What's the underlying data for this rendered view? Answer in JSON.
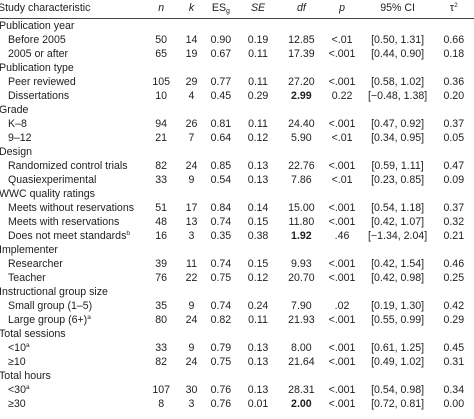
{
  "headers": {
    "study": "Study characteristic",
    "n": "n",
    "k": "k",
    "es_base": "ES",
    "es_sub": "g",
    "se": "SE",
    "df": "df",
    "p": "p",
    "ci": "95% CI",
    "tau_base": "τ",
    "tau_sup": "2"
  },
  "groups": [
    {
      "title": "Publication year",
      "rows": [
        {
          "label": "Before 2005",
          "sup": "",
          "n": "50",
          "k": "14",
          "es": "0.90",
          "se": "0.19",
          "df": "12.85",
          "df_bold": false,
          "p": "<.01",
          "ci": "[0.50, 1.31]",
          "tau": "0.66"
        },
        {
          "label": "2005 or after",
          "sup": "",
          "n": "65",
          "k": "19",
          "es": "0.67",
          "se": "0.11",
          "df": "17.39",
          "df_bold": false,
          "p": "<.001",
          "ci": "[0.44, 0.90]",
          "tau": "0.18"
        }
      ]
    },
    {
      "title": "Publication type",
      "rows": [
        {
          "label": "Peer reviewed",
          "sup": "",
          "n": "105",
          "k": "29",
          "es": "0.77",
          "se": "0.11",
          "df": "27.20",
          "df_bold": false,
          "p": "<.001",
          "ci": "[0.58, 1.02]",
          "tau": "0.36"
        },
        {
          "label": "Dissertations",
          "sup": "",
          "n": "10",
          "k": "4",
          "es": "0.45",
          "se": "0.29",
          "df": "2.99",
          "df_bold": true,
          "p": "0.22",
          "ci": "[−0.48, 1.38]",
          "tau": "0.20"
        }
      ]
    },
    {
      "title": "Grade",
      "rows": [
        {
          "label": "K–8",
          "sup": "",
          "n": "94",
          "k": "26",
          "es": "0.81",
          "se": "0.11",
          "df": "24.40",
          "df_bold": false,
          "p": "<.001",
          "ci": "[0.47, 0.92]",
          "tau": "0.37"
        },
        {
          "label": "9–12",
          "sup": "",
          "n": "21",
          "k": "7",
          "es": "0.64",
          "se": "0.12",
          "df": "5.90",
          "df_bold": false,
          "p": "<.01",
          "ci": "[0.34, 0.95]",
          "tau": "0.05"
        }
      ]
    },
    {
      "title": "Design",
      "rows": [
        {
          "label": "Randomized control trials",
          "sup": "",
          "n": "82",
          "k": "24",
          "es": "0.85",
          "se": "0.13",
          "df": "22.76",
          "df_bold": false,
          "p": "<.001",
          "ci": "[0.59, 1.11]",
          "tau": "0.47"
        },
        {
          "label": "Quasiexperimental",
          "sup": "",
          "n": "33",
          "k": "9",
          "es": "0.54",
          "se": "0.13",
          "df": "7.86",
          "df_bold": false,
          "p": "<.01",
          "ci": "[0.23, 0.85]",
          "tau": "0.09"
        }
      ]
    },
    {
      "title": "WWC quality ratings",
      "rows": [
        {
          "label": "Meets without reservations",
          "sup": "",
          "n": "51",
          "k": "17",
          "es": "0.84",
          "se": "0.14",
          "df": "15.00",
          "df_bold": false,
          "p": "<.001",
          "ci": "[0.54, 1.18]",
          "tau": "0.37"
        },
        {
          "label": "Meets with reservations",
          "sup": "",
          "n": "48",
          "k": "13",
          "es": "0.74",
          "se": "0.15",
          "df": "11.80",
          "df_bold": false,
          "p": "<.001",
          "ci": "[0.42, 1.07]",
          "tau": "0.32"
        },
        {
          "label": "Does not meet standards",
          "sup": "b",
          "n": "16",
          "k": "3",
          "es": "0.35",
          "se": "0.38",
          "df": "1.92",
          "df_bold": true,
          "p": ".46",
          "ci": "[−1.34, 2.04]",
          "tau": "0.21"
        }
      ]
    },
    {
      "title": "Implementer",
      "rows": [
        {
          "label": "Researcher",
          "sup": "",
          "n": "39",
          "k": "11",
          "es": "0.74",
          "se": "0.15",
          "df": "9.93",
          "df_bold": false,
          "p": "<.001",
          "ci": "[0.42, 1.54]",
          "tau": "0.46"
        },
        {
          "label": "Teacher",
          "sup": "",
          "n": "76",
          "k": "22",
          "es": "0.75",
          "se": "0.12",
          "df": "20.70",
          "df_bold": false,
          "p": "<.001",
          "ci": "[0.42, 0.98]",
          "tau": "0.25"
        }
      ]
    },
    {
      "title": "Instructional group size",
      "rows": [
        {
          "label": "Small group (1–5)",
          "sup": "",
          "n": "35",
          "k": "9",
          "es": "0.74",
          "se": "0.24",
          "df": "7.90",
          "df_bold": false,
          "p": ".02",
          "ci": "[0.19, 1.30]",
          "tau": "0.42"
        },
        {
          "label": "Large group (6+)",
          "sup": "a",
          "n": "80",
          "k": "24",
          "es": "0.82",
          "se": "0.11",
          "df": "21.93",
          "df_bold": false,
          "p": "<.001",
          "ci": "[0.55, 0.99]",
          "tau": "0.29"
        }
      ]
    },
    {
      "title": "Total sessions",
      "rows": [
        {
          "label": "<10",
          "sup": "a",
          "n": "33",
          "k": "9",
          "es": "0.79",
          "se": "0.13",
          "df": "8.00",
          "df_bold": false,
          "p": "<.001",
          "ci": "[0.61, 1.25]",
          "tau": "0.45"
        },
        {
          "label": "≥10",
          "sup": "",
          "n": "82",
          "k": "24",
          "es": "0.75",
          "se": "0.13",
          "df": "21.64",
          "df_bold": false,
          "p": "<.001",
          "ci": "[0.49, 1.02]",
          "tau": "0.31"
        }
      ]
    },
    {
      "title": "Total hours",
      "rows": [
        {
          "label": "<30",
          "sup": "a",
          "n": "107",
          "k": "30",
          "es": "0.76",
          "se": "0.13",
          "df": "28.31",
          "df_bold": false,
          "p": "<.001",
          "ci": "[0.54, 0.98]",
          "tau": "0.34"
        },
        {
          "label": "≥30",
          "sup": "",
          "n": "8",
          "k": "3",
          "es": "0.76",
          "se": "0.01",
          "df": "2.00",
          "df_bold": true,
          "p": "<.001",
          "ci": "[0.72, 0.81]",
          "tau": "0.00"
        }
      ]
    }
  ]
}
